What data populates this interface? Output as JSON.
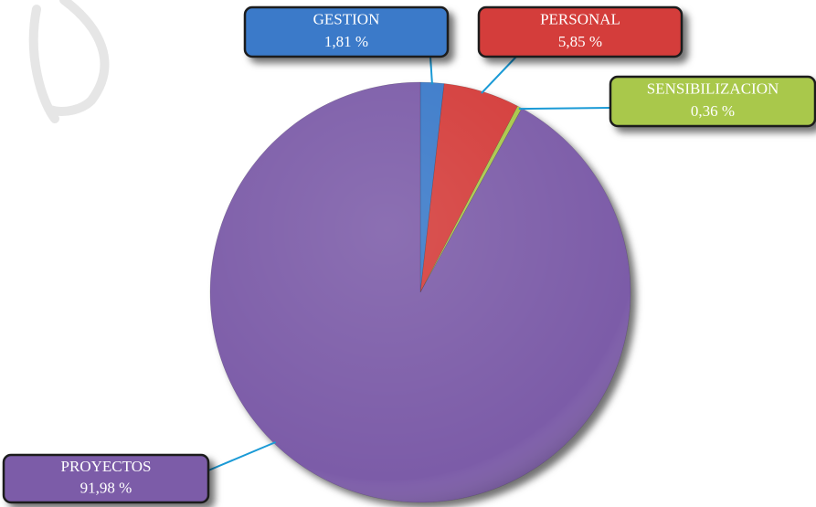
{
  "chart_data": {
    "type": "pie",
    "categories": [
      "GESTION",
      "PERSONAL",
      "SENSIBILIZACION",
      "PROYECTOS"
    ],
    "values": [
      1.81,
      5.85,
      0.36,
      91.98
    ],
    "value_labels": [
      "1,81 %",
      "5,85 %",
      "0,36 %",
      "91,98 %"
    ],
    "colors": [
      "#3b7ac9",
      "#d43d3a",
      "#a9c84c",
      "#7b5ba8"
    ]
  }
}
